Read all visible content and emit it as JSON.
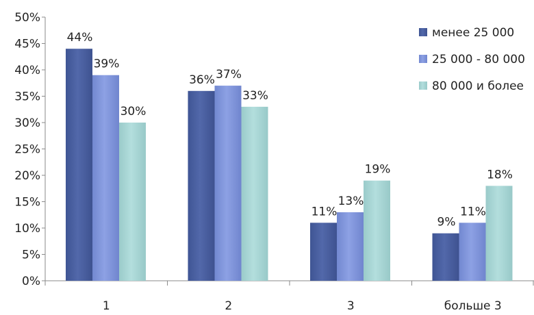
{
  "chart_data": {
    "type": "bar",
    "title": "",
    "xlabel": "",
    "ylabel": "",
    "categories": [
      "1",
      "2",
      "3",
      "больше 3"
    ],
    "ylim": [
      0,
      50
    ],
    "yticks": [
      0,
      5,
      10,
      15,
      20,
      25,
      30,
      35,
      40,
      45,
      50
    ],
    "y_tick_suffix": "%",
    "grid": false,
    "legend_position": "right",
    "series": [
      {
        "name": "менее 25 000",
        "color": "#4A60A0",
        "values": [
          44,
          36,
          11,
          9
        ],
        "labels": [
          "44%",
          "36%",
          "11%",
          "9%"
        ]
      },
      {
        "name": "25 000 - 80 000",
        "color": "#7F95DB",
        "values": [
          39,
          37,
          13,
          11
        ],
        "labels": [
          "39%",
          "37%",
          "13%",
          "11%"
        ]
      },
      {
        "name": "80 000 и более",
        "color": "#A6D4D3",
        "values": [
          30,
          33,
          19,
          18
        ],
        "labels": [
          "30%",
          "33%",
          "19%",
          "18%"
        ]
      }
    ]
  }
}
